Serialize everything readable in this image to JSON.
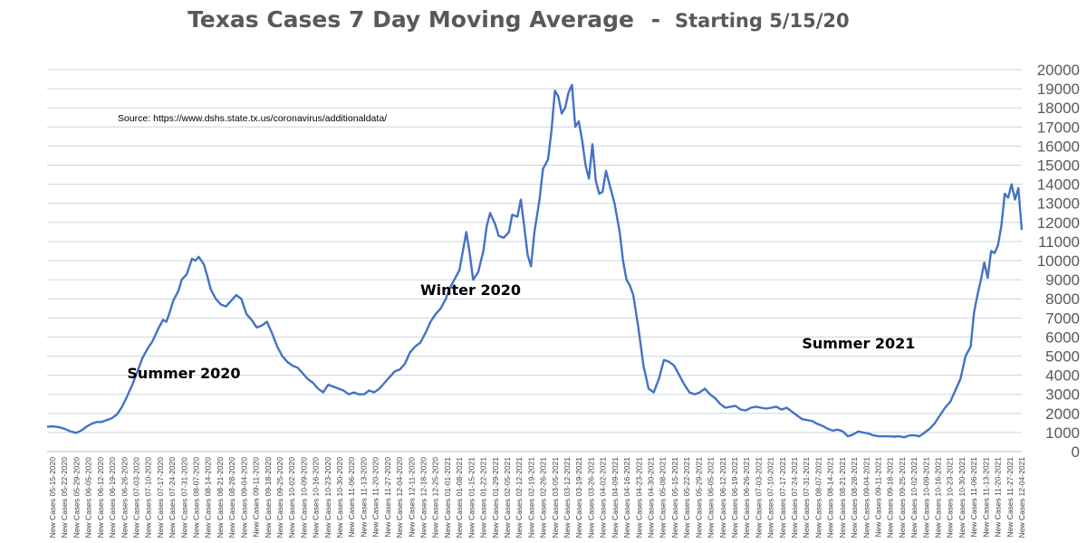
{
  "chart_data": {
    "type": "line",
    "title": "Texas Cases 7 Day Moving Average",
    "title_separator": "-",
    "subtitle": "Starting 5/15/20",
    "source_note": "Source:  https://www.dshs.state.tx.us/coronavirus/additionaldata/",
    "annotations": [
      {
        "text": "Summer 2020",
        "date": "2020-07-01",
        "y": 3850
      },
      {
        "text": "Winter 2020",
        "date": "2020-12-20",
        "y": 8200
      },
      {
        "text": "Summer 2021",
        "date": "2021-08-01",
        "y": 5400
      }
    ],
    "ylim": [
      0,
      20000
    ],
    "y_ticks": [
      0,
      1000,
      2000,
      3000,
      4000,
      5000,
      6000,
      7000,
      8000,
      9000,
      10000,
      11000,
      12000,
      13000,
      14000,
      15000,
      16000,
      17000,
      18000,
      19000,
      20000
    ],
    "y_axis_position": "right",
    "grid": true,
    "legend": "none",
    "line_color": "#4472C4",
    "x_tick_labels": [
      "New Cases 05-15-2020",
      "New Cases 05-22-2020",
      "New Cases 05-29-2020",
      "New Cases 06-05-2020",
      "New Cases 06-12-2020",
      "New Cases 06-19-2020",
      "New Cases 06-26-2020",
      "New Cases 07-03-2020",
      "New Cases 07-10-2020",
      "New Cases 07-17-2020",
      "New Cases 07-24-2020",
      "New Cases 07-31-2020",
      "New Cases 08-07-2020",
      "New Cases 08-14-2020",
      "New Cases 08-21-2020",
      "New Cases 08-28-2020",
      "New Cases 09-04-2020",
      "New Cases 09-11-2020",
      "New Cases 09-18-2020",
      "New Cases 09-25-2020",
      "New Cases 10-02-2020",
      "New Cases 10-09-2020",
      "New Cases 10-16-2020",
      "New Cases 10-23-2020",
      "New Cases 10-30-2020",
      "New Cases 11-06-2020",
      "New Cases 11-13-2020",
      "New Cases 11-20-2020",
      "New Cases 11-27-2020",
      "New Cases 12-04-2020",
      "New Cases 12-11-2020",
      "New Cases 12-18-2020",
      "New Cases 12-25-2020",
      "New Cases 01-01-2021",
      "New Cases 01-08-2021",
      "New Cases 01-15-2021",
      "New Cases 01-22-2021",
      "New Cases 01-29-2021",
      "New Cases 02-05-2021",
      "New Cases 02-12-2021",
      "New Cases 02-19-2021",
      "New Cases 02-26-2021",
      "New Cases 03-05-2021",
      "New Cases 03-12-2021",
      "New Cases 03-19-2021",
      "New Cases 03-26-2021",
      "New Cases 04-02-2021",
      "New Cases 04-09-2021",
      "New Cases 04-16-2021",
      "New Cases 04-23-2021",
      "New Cases 04-30-2021",
      "New Cases 05-08-2021",
      "New Cases 05-15-2021",
      "New Cases 05-22-2021",
      "New Cases 05-29-2021",
      "New Cases 06-05-2021",
      "New Cases 06-12-2021",
      "New Cases 06-19-2021",
      "New Cases 06-26-2021",
      "New Cases 07-03-2021",
      "New Cases 07-10-2021",
      "New Cases 07-17-2021",
      "New Cases 07-24-2021",
      "New Cases 07-31-2021",
      "New Cases 08-07-2021",
      "New Cases 08-14-2021",
      "New Cases 08-21-2021",
      "New Cases 08-28-2021",
      "New Cases 09-04-2021",
      "New Cases 09-11-2021",
      "New Cases 09-18-2021",
      "New Cases 09-25-2021",
      "New Cases 10-02-2021",
      "New Cases 10-09-2021",
      "New Cases 10-16-2021",
      "New Cases 10-23-2021",
      "New Cases 10-30-2021",
      "New Cases 11-06-2021",
      "New Cases 11-13-2021",
      "New Cases 11-20-2021",
      "New Cases 11-27-2021",
      "New Cases 12-04-2021"
    ],
    "x_range": [
      "2020-05-15",
      "2021-12-08"
    ],
    "series": [
      {
        "points": [
          [
            "2020-05-15",
            1300
          ],
          [
            "2020-05-18",
            1320
          ],
          [
            "2020-05-22",
            1280
          ],
          [
            "2020-05-25",
            1200
          ],
          [
            "2020-05-29",
            1050
          ],
          [
            "2020-06-01",
            980
          ],
          [
            "2020-06-04",
            1100
          ],
          [
            "2020-06-07",
            1300
          ],
          [
            "2020-06-10",
            1450
          ],
          [
            "2020-06-13",
            1550
          ],
          [
            "2020-06-16",
            1550
          ],
          [
            "2020-06-19",
            1650
          ],
          [
            "2020-06-22",
            1750
          ],
          [
            "2020-06-25",
            1950
          ],
          [
            "2020-06-28",
            2350
          ],
          [
            "2020-07-01",
            2900
          ],
          [
            "2020-07-04",
            3500
          ],
          [
            "2020-07-07",
            4200
          ],
          [
            "2020-07-10",
            4900
          ],
          [
            "2020-07-13",
            5400
          ],
          [
            "2020-07-16",
            5800
          ],
          [
            "2020-07-19",
            6400
          ],
          [
            "2020-07-22",
            6900
          ],
          [
            "2020-07-24",
            6800
          ],
          [
            "2020-07-26",
            7300
          ],
          [
            "2020-07-28",
            7900
          ],
          [
            "2020-07-31",
            8400
          ],
          [
            "2020-08-02",
            9000
          ],
          [
            "2020-08-05",
            9300
          ],
          [
            "2020-08-08",
            10100
          ],
          [
            "2020-08-10",
            10000
          ],
          [
            "2020-08-12",
            10200
          ],
          [
            "2020-08-15",
            9800
          ],
          [
            "2020-08-17",
            9200
          ],
          [
            "2020-08-19",
            8500
          ],
          [
            "2020-08-22",
            8000
          ],
          [
            "2020-08-25",
            7700
          ],
          [
            "2020-08-28",
            7600
          ],
          [
            "2020-08-31",
            7900
          ],
          [
            "2020-09-03",
            8200
          ],
          [
            "2020-09-06",
            8000
          ],
          [
            "2020-09-09",
            7200
          ],
          [
            "2020-09-12",
            6900
          ],
          [
            "2020-09-15",
            6500
          ],
          [
            "2020-09-18",
            6600
          ],
          [
            "2020-09-21",
            6800
          ],
          [
            "2020-09-24",
            6200
          ],
          [
            "2020-09-27",
            5500
          ],
          [
            "2020-09-30",
            5000
          ],
          [
            "2020-10-03",
            4700
          ],
          [
            "2020-10-06",
            4500
          ],
          [
            "2020-10-09",
            4400
          ],
          [
            "2020-10-12",
            4100
          ],
          [
            "2020-10-15",
            3800
          ],
          [
            "2020-10-18",
            3600
          ],
          [
            "2020-10-21",
            3300
          ],
          [
            "2020-10-24",
            3100
          ],
          [
            "2020-10-27",
            3500
          ],
          [
            "2020-10-30",
            3400
          ],
          [
            "2020-11-02",
            3300
          ],
          [
            "2020-11-05",
            3200
          ],
          [
            "2020-11-08",
            3000
          ],
          [
            "2020-11-11",
            3100
          ],
          [
            "2020-11-14",
            3000
          ],
          [
            "2020-11-17",
            3000
          ],
          [
            "2020-11-20",
            3200
          ],
          [
            "2020-11-23",
            3100
          ],
          [
            "2020-11-26",
            3300
          ],
          [
            "2020-11-29",
            3600
          ],
          [
            "2020-12-02",
            3900
          ],
          [
            "2020-12-05",
            4200
          ],
          [
            "2020-12-08",
            4300
          ],
          [
            "2020-12-11",
            4600
          ],
          [
            "2020-12-14",
            5200
          ],
          [
            "2020-12-17",
            5500
          ],
          [
            "2020-12-20",
            5700
          ],
          [
            "2020-12-23",
            6200
          ],
          [
            "2020-12-26",
            6800
          ],
          [
            "2020-12-29",
            7200
          ],
          [
            "2021-01-01",
            7500
          ],
          [
            "2021-01-04",
            8000
          ],
          [
            "2021-01-06",
            8500
          ],
          [
            "2021-01-09",
            9000
          ],
          [
            "2021-01-12",
            9500
          ],
          [
            "2021-01-14",
            10500
          ],
          [
            "2021-01-16",
            11500
          ],
          [
            "2021-01-18",
            10400
          ],
          [
            "2021-01-20",
            9000
          ],
          [
            "2021-01-23",
            9400
          ],
          [
            "2021-01-26",
            10500
          ],
          [
            "2021-01-28",
            11800
          ],
          [
            "2021-01-30",
            12500
          ],
          [
            "2021-02-02",
            11900
          ],
          [
            "2021-02-04",
            11300
          ],
          [
            "2021-02-07",
            11200
          ],
          [
            "2021-02-10",
            11500
          ],
          [
            "2021-02-12",
            12400
          ],
          [
            "2021-02-15",
            12300
          ],
          [
            "2021-02-17",
            13200
          ],
          [
            "2021-02-19",
            11800
          ],
          [
            "2021-02-21",
            10300
          ],
          [
            "2021-02-23",
            9700
          ],
          [
            "2021-02-25",
            11500
          ],
          [
            "2021-02-28",
            13200
          ],
          [
            "2021-03-02",
            14800
          ],
          [
            "2021-03-05",
            15300
          ],
          [
            "2021-03-07",
            16800
          ],
          [
            "2021-03-09",
            18900
          ],
          [
            "2021-03-11",
            18600
          ],
          [
            "2021-03-13",
            17700
          ],
          [
            "2021-03-15",
            18000
          ],
          [
            "2021-03-17",
            18800
          ],
          [
            "2021-03-19",
            19200
          ],
          [
            "2021-03-21",
            17000
          ],
          [
            "2021-03-23",
            17300
          ],
          [
            "2021-03-25",
            16300
          ],
          [
            "2021-03-27",
            15000
          ],
          [
            "2021-03-29",
            14300
          ],
          [
            "2021-03-31",
            16100
          ],
          [
            "2021-04-02",
            14200
          ],
          [
            "2021-04-04",
            13500
          ],
          [
            "2021-04-06",
            13600
          ],
          [
            "2021-04-08",
            14700
          ],
          [
            "2021-04-10",
            14000
          ],
          [
            "2021-04-13",
            13000
          ],
          [
            "2021-04-16",
            11500
          ],
          [
            "2021-04-18",
            10000
          ],
          [
            "2021-04-20",
            9000
          ],
          [
            "2021-04-22",
            8700
          ],
          [
            "2021-04-24",
            8200
          ],
          [
            "2021-04-27",
            6500
          ],
          [
            "2021-04-30",
            4500
          ],
          [
            "2021-05-03",
            3300
          ],
          [
            "2021-05-06",
            3100
          ],
          [
            "2021-05-09",
            3800
          ],
          [
            "2021-05-12",
            4800
          ],
          [
            "2021-05-15",
            4700
          ],
          [
            "2021-05-18",
            4500
          ],
          [
            "2021-05-21",
            4000
          ],
          [
            "2021-05-24",
            3500
          ],
          [
            "2021-05-27",
            3100
          ],
          [
            "2021-05-30",
            3000
          ],
          [
            "2021-06-02",
            3100
          ],
          [
            "2021-06-05",
            3300
          ],
          [
            "2021-06-08",
            3000
          ],
          [
            "2021-06-11",
            2800
          ],
          [
            "2021-06-14",
            2500
          ],
          [
            "2021-06-17",
            2300
          ],
          [
            "2021-06-20",
            2350
          ],
          [
            "2021-06-23",
            2400
          ],
          [
            "2021-06-26",
            2200
          ],
          [
            "2021-06-29",
            2150
          ],
          [
            "2021-07-02",
            2300
          ],
          [
            "2021-07-05",
            2350
          ],
          [
            "2021-07-08",
            2300
          ],
          [
            "2021-07-11",
            2250
          ],
          [
            "2021-07-14",
            2300
          ],
          [
            "2021-07-17",
            2350
          ],
          [
            "2021-07-20",
            2200
          ],
          [
            "2021-07-23",
            2300
          ],
          [
            "2021-07-26",
            2100
          ],
          [
            "2021-07-29",
            1900
          ],
          [
            "2021-08-01",
            1700
          ],
          [
            "2021-08-04",
            1650
          ],
          [
            "2021-08-07",
            1600
          ],
          [
            "2021-08-10",
            1450
          ],
          [
            "2021-08-13",
            1350
          ],
          [
            "2021-08-16",
            1200
          ],
          [
            "2021-08-19",
            1100
          ],
          [
            "2021-08-22",
            1150
          ],
          [
            "2021-08-25",
            1050
          ],
          [
            "2021-08-28",
            800
          ],
          [
            "2021-08-31",
            900
          ],
          [
            "2021-09-03",
            1050
          ],
          [
            "2021-09-06",
            1000
          ],
          [
            "2021-09-09",
            950
          ],
          [
            "2021-09-12",
            850
          ],
          [
            "2021-09-15",
            800
          ],
          [
            "2021-09-18",
            800
          ],
          [
            "2021-09-21",
            800
          ],
          [
            "2021-09-24",
            780
          ],
          [
            "2021-09-27",
            800
          ],
          [
            "2021-09-30",
            750
          ],
          [
            "2021-10-03",
            850
          ],
          [
            "2021-10-06",
            850
          ],
          [
            "2021-10-09",
            800
          ],
          [
            "2021-10-12",
            1000
          ],
          [
            "2021-10-15",
            1200
          ],
          [
            "2021-10-18",
            1500
          ],
          [
            "2021-10-21",
            1900
          ],
          [
            "2021-10-24",
            2300
          ],
          [
            "2021-10-27",
            2600
          ],
          [
            "2021-10-30",
            3200
          ],
          [
            "2021-11-02",
            3800
          ],
          [
            "2021-11-05",
            5000
          ],
          [
            "2021-11-08",
            5500
          ],
          [
            "2021-11-10",
            7300
          ],
          [
            "2021-11-12",
            8200
          ],
          [
            "2021-11-14",
            9000
          ],
          [
            "2021-11-16",
            9900
          ],
          [
            "2021-11-18",
            9100
          ],
          [
            "2021-11-20",
            10500
          ],
          [
            "2021-11-22",
            10400
          ],
          [
            "2021-11-24",
            10800
          ],
          [
            "2021-11-26",
            11800
          ],
          [
            "2021-11-28",
            13500
          ],
          [
            "2021-11-30",
            13300
          ],
          [
            "2021-12-02",
            14000
          ],
          [
            "2021-12-04",
            13200
          ],
          [
            "2021-12-06",
            13800
          ],
          [
            "2021-12-08",
            11600
          ]
        ]
      }
    ]
  }
}
